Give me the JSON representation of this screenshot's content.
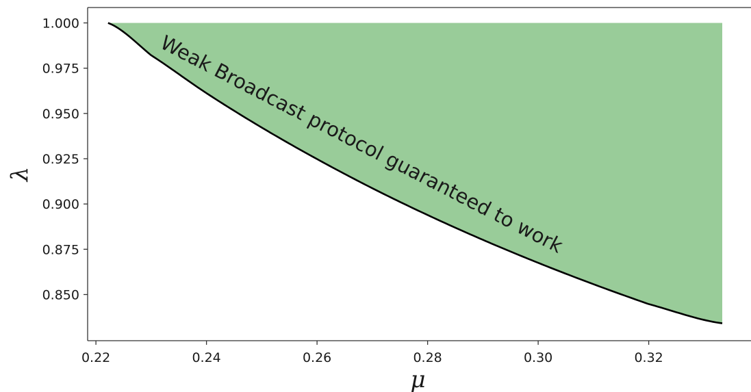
{
  "chart_data": {
    "type": "area",
    "xlabel": "μ",
    "ylabel": "λ",
    "xlim": [
      0.2185,
      0.3385
    ],
    "ylim": [
      0.8245,
      1.0085
    ],
    "x_ticks": [
      0.22,
      0.24,
      0.26,
      0.28,
      0.3,
      0.32
    ],
    "x_tick_labels": [
      "0.22",
      "0.24",
      "0.26",
      "0.28",
      "0.30",
      "0.32"
    ],
    "y_ticks": [
      0.85,
      0.875,
      0.9,
      0.925,
      0.95,
      0.975,
      1.0
    ],
    "y_tick_labels": [
      "0.850",
      "0.875",
      "0.900",
      "0.925",
      "0.950",
      "0.975",
      "1.000"
    ],
    "grid": false,
    "fill_color": "#99cc99",
    "line_color": "#000000",
    "fill_upper": 1.0,
    "boundary": {
      "x": [
        0.2222,
        0.23,
        0.24,
        0.25,
        0.26,
        0.27,
        0.28,
        0.29,
        0.3,
        0.31,
        0.32,
        0.3333
      ],
      "y": [
        1.0,
        0.9821,
        0.9612,
        0.9422,
        0.9248,
        0.9087,
        0.8939,
        0.8802,
        0.8675,
        0.8557,
        0.8447,
        0.8341
      ]
    },
    "annotation": {
      "text": "Weak Broadcast protocol guaranteed to work",
      "x": 0.2675,
      "y": 0.9297
    }
  }
}
